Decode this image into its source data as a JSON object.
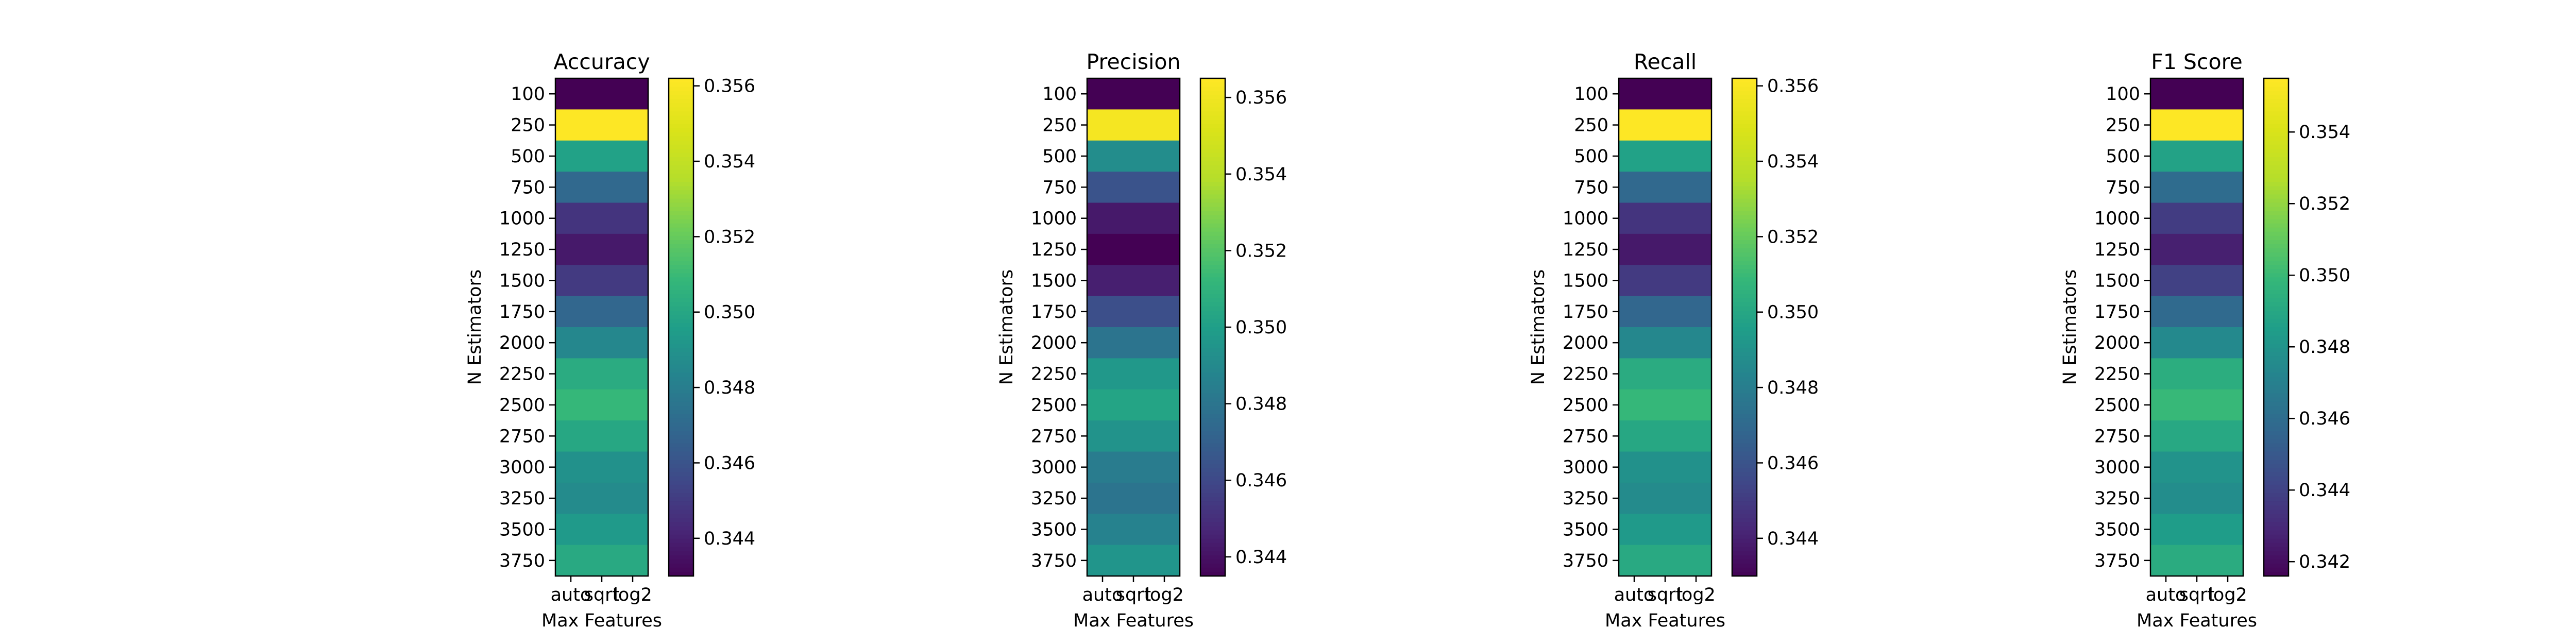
{
  "colormap": "viridis",
  "chart_data": [
    {
      "type": "heatmap",
      "title": "Accuracy",
      "xlabel": "Max Features",
      "ylabel": "N Estimators",
      "x_categories": [
        "auto",
        "sqrt",
        "log2"
      ],
      "y_categories": [
        "100",
        "250",
        "500",
        "750",
        "1000",
        "1250",
        "1500",
        "1750",
        "2000",
        "2250",
        "2500",
        "2750",
        "3000",
        "3250",
        "3500",
        "3750"
      ],
      "values": [
        0.343,
        0.3562,
        0.3498,
        0.347,
        0.3448,
        0.3438,
        0.345,
        0.3469,
        0.3485,
        0.3503,
        0.3509,
        0.3501,
        0.349,
        0.3487,
        0.3494,
        0.3502
      ],
      "colorbar_range": [
        0.343,
        0.3562
      ],
      "colorbar_ticks": [
        "0.344",
        "0.346",
        "0.348",
        "0.350",
        "0.352",
        "0.354",
        "0.356"
      ],
      "colorbar_tick_values": [
        0.344,
        0.346,
        0.348,
        0.35,
        0.352,
        0.354,
        0.356
      ]
    },
    {
      "type": "heatmap",
      "title": "Precision",
      "xlabel": "Max Features",
      "ylabel": "N Estimators",
      "x_categories": [
        "auto",
        "sqrt",
        "log2"
      ],
      "y_categories": [
        "100",
        "250",
        "500",
        "750",
        "1000",
        "1250",
        "1500",
        "1750",
        "2000",
        "2250",
        "2500",
        "2750",
        "3000",
        "3250",
        "3500",
        "3750"
      ],
      "values": [
        0.3435,
        0.3562,
        0.3492,
        0.3465,
        0.3443,
        0.3435,
        0.3445,
        0.3463,
        0.348,
        0.3497,
        0.3503,
        0.3495,
        0.3484,
        0.348,
        0.3487,
        0.3496
      ],
      "colorbar_range": [
        0.3435,
        0.3565
      ],
      "colorbar_ticks": [
        "0.344",
        "0.346",
        "0.348",
        "0.350",
        "0.352",
        "0.354",
        "0.356"
      ],
      "colorbar_tick_values": [
        0.344,
        0.346,
        0.348,
        0.35,
        0.352,
        0.354,
        0.356
      ]
    },
    {
      "type": "heatmap",
      "title": "Recall",
      "xlabel": "Max Features",
      "ylabel": "N Estimators",
      "x_categories": [
        "auto",
        "sqrt",
        "log2"
      ],
      "y_categories": [
        "100",
        "250",
        "500",
        "750",
        "1000",
        "1250",
        "1500",
        "1750",
        "2000",
        "2250",
        "2500",
        "2750",
        "3000",
        "3250",
        "3500",
        "3750"
      ],
      "values": [
        0.343,
        0.3562,
        0.3498,
        0.347,
        0.3448,
        0.3438,
        0.345,
        0.3469,
        0.3485,
        0.3503,
        0.3509,
        0.3501,
        0.349,
        0.3487,
        0.3494,
        0.3502
      ],
      "colorbar_range": [
        0.343,
        0.3562
      ],
      "colorbar_ticks": [
        "0.344",
        "0.346",
        "0.348",
        "0.350",
        "0.352",
        "0.354",
        "0.356"
      ],
      "colorbar_tick_values": [
        0.344,
        0.346,
        0.348,
        0.35,
        0.352,
        0.354,
        0.356
      ]
    },
    {
      "type": "heatmap",
      "title": "F1 Score",
      "xlabel": "Max Features",
      "ylabel": "N Estimators",
      "x_categories": [
        "auto",
        "sqrt",
        "log2"
      ],
      "y_categories": [
        "100",
        "250",
        "500",
        "750",
        "1000",
        "1250",
        "1500",
        "1750",
        "2000",
        "2250",
        "2500",
        "2750",
        "3000",
        "3250",
        "3500",
        "3750"
      ],
      "values": [
        0.3416,
        0.3555,
        0.3488,
        0.346,
        0.3438,
        0.3427,
        0.344,
        0.3459,
        0.3475,
        0.3494,
        0.35,
        0.3491,
        0.348,
        0.3477,
        0.3485,
        0.3493
      ],
      "colorbar_range": [
        0.3416,
        0.3555
      ],
      "colorbar_ticks": [
        "0.342",
        "0.344",
        "0.346",
        "0.348",
        "0.350",
        "0.352",
        "0.354"
      ],
      "colorbar_tick_values": [
        0.342,
        0.344,
        0.346,
        0.348,
        0.35,
        0.352,
        0.354
      ]
    }
  ]
}
